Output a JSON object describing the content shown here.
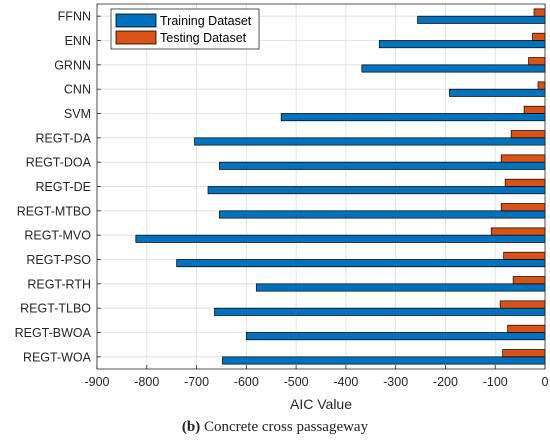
{
  "chart_data": {
    "type": "bar",
    "orientation": "horizontal",
    "xlabel": "AIC Value",
    "xlim": [
      -900,
      0
    ],
    "xticks": [
      -900,
      -800,
      -700,
      -600,
      -500,
      -400,
      -300,
      -200,
      -100,
      0
    ],
    "grid": true,
    "legend_position": "top-left",
    "categories": [
      "FFNN",
      "ENN",
      "GRNN",
      "CNN",
      "SVM",
      "REGT-DA",
      "REGT-DOA",
      "REGT-DE",
      "REGT-MTBO",
      "REGT-MVO",
      "REGT-PSO",
      "REGT-RTH",
      "REGT-TLBO",
      "REGT-BWOA",
      "REGT-WOA"
    ],
    "series": [
      {
        "name": "Training Dataset",
        "color": "#0072BD",
        "values": [
          -256,
          -333,
          -368,
          -192,
          -530,
          -704,
          -654,
          -677,
          -654,
          -822,
          -740,
          -580,
          -664,
          -600,
          -648
        ]
      },
      {
        "name": "Testing Dataset",
        "color": "#D95319",
        "values": [
          -22,
          -25,
          -33,
          -14,
          -42,
          -68,
          -88,
          -80,
          -88,
          -108,
          -83,
          -64,
          -90,
          -75,
          -85
        ]
      }
    ]
  },
  "caption": {
    "label": "(b)",
    "text": "Concrete cross passageway"
  }
}
